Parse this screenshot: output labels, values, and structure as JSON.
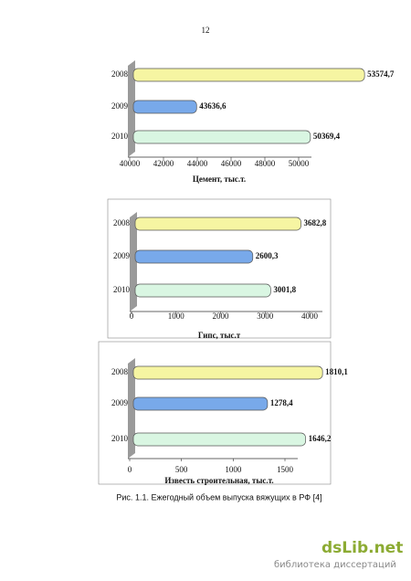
{
  "page_number": "12",
  "caption": "Рис. 1.1. Ежегодный объем выпуска вяжущих в РФ [4]",
  "watermark": {
    "logo": "dsLib.net",
    "subtitle": "библиотека диссертаций"
  },
  "chart_data": [
    {
      "type": "hbar",
      "title": "Цемент, тыс.т.",
      "categories": [
        "2008",
        "2009",
        "2010"
      ],
      "values": [
        53574.7,
        43636.6,
        50369.4
      ],
      "value_labels": [
        "53574,7",
        "43636,6",
        "50369,4"
      ],
      "colors": [
        "#f6f5a2",
        "#78a9ea",
        "#d9f6e2"
      ],
      "xlim": [
        40000,
        50000
      ],
      "xticks": [
        40000,
        42000,
        44000,
        46000,
        48000,
        50000
      ]
    },
    {
      "type": "hbar",
      "title": "Гипс, тыс.т",
      "categories": [
        "2008",
        "2009",
        "2010"
      ],
      "values": [
        3682.8,
        2600.3,
        3001.8
      ],
      "value_labels": [
        "3682,8",
        "2600,3",
        "3001,8"
      ],
      "colors": [
        "#f6f5a2",
        "#78a9ea",
        "#d9f6e2"
      ],
      "xlim": [
        0,
        4000
      ],
      "xticks": [
        0,
        1000,
        2000,
        3000,
        4000
      ]
    },
    {
      "type": "hbar",
      "title": "Известь строительная, тыс.т.",
      "categories": [
        "2008",
        "2009",
        "2010"
      ],
      "values": [
        1810.1,
        1278.4,
        1646.2
      ],
      "value_labels": [
        "1810,1",
        "1278,4",
        "1646,2"
      ],
      "colors": [
        "#f6f5a2",
        "#78a9ea",
        "#d9f6e2"
      ],
      "xlim": [
        0,
        1500
      ],
      "xticks": [
        0,
        500,
        1000,
        1500
      ]
    }
  ]
}
